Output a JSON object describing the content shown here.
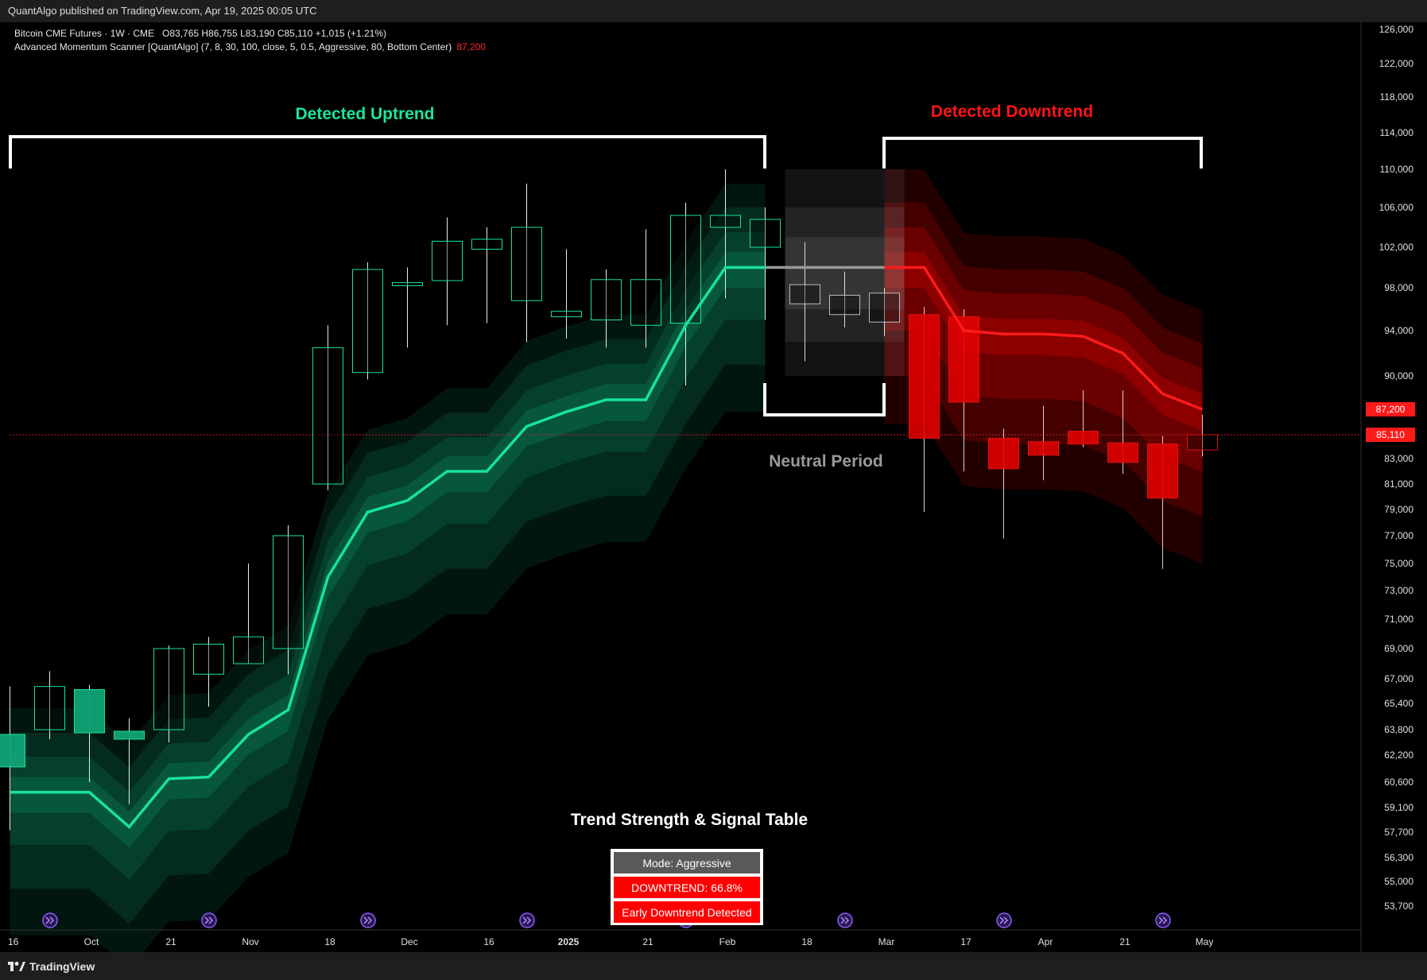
{
  "header": {
    "published": "QuantAlgo published on TradingView.com, Apr 19, 2025 00:05 UTC"
  },
  "legend": {
    "symbol": "Bitcoin CME Futures · 1W · CME",
    "ohlc": "O83,765  H86,755  L83,190  C85,110  +1,015 (+1.21%)",
    "indicator": "Advanced Momentum Scanner [QuantAlgo] (7, 8, 30, 100, close, 5, 0.5, Aggressive, 80, Bottom Center)",
    "indicator_value": "87,200"
  },
  "annotations": {
    "uptrend": "Detected Uptrend",
    "downtrend": "Detected Downtrend",
    "neutral": "Neutral Period",
    "table_title": "Trend Strength & Signal Table"
  },
  "signal_table": {
    "mode": "Mode: Aggressive",
    "trend": "DOWNTREND: 66.8%",
    "signal": "Early Downtrend Detected"
  },
  "footer": {
    "brand": "TradingView"
  },
  "colors": {
    "bull": "#17e39b",
    "bull_body": "#0fa376",
    "bear": "#ff1a1a",
    "neutral": "#808080",
    "price_line": "#ff3b3b"
  },
  "chart_data": {
    "type": "candlestick",
    "timeframe": "1W",
    "y_axis_ticks": [
      126000,
      122000,
      118000,
      114000,
      110000,
      106000,
      102000,
      98000,
      94000,
      90000,
      83000,
      81000,
      79000,
      77000,
      75000,
      73000,
      71000,
      69000,
      67000,
      65400,
      63800,
      62200,
      60600,
      59100,
      57700,
      56300,
      55000,
      53700
    ],
    "x_axis_labels": [
      "16",
      "Oct",
      "21",
      "Nov",
      "18",
      "Dec",
      "16",
      "2025",
      "21",
      "Feb",
      "18",
      "Mar",
      "17",
      "Apr",
      "21",
      "May"
    ],
    "price_labels": [
      {
        "value": 87200,
        "label": "87,200"
      },
      {
        "value": 85110,
        "label": "85,110"
      }
    ],
    "candles": [
      {
        "o": 63500,
        "h": 66500,
        "l": 57800,
        "c": 61500,
        "state": "up"
      },
      {
        "o": 63800,
        "h": 67500,
        "l": 63200,
        "c": 66500,
        "state": "up"
      },
      {
        "o": 66300,
        "h": 66600,
        "l": 60600,
        "c": 63600,
        "state": "up"
      },
      {
        "o": 63700,
        "h": 64500,
        "l": 59300,
        "c": 63200,
        "state": "up"
      },
      {
        "o": 63800,
        "h": 69200,
        "l": 63000,
        "c": 69000,
        "state": "up"
      },
      {
        "o": 67300,
        "h": 69800,
        "l": 65200,
        "c": 69300,
        "state": "up"
      },
      {
        "o": 68000,
        "h": 75000,
        "l": 68000,
        "c": 69800,
        "state": "up"
      },
      {
        "o": 69000,
        "h": 77800,
        "l": 67300,
        "c": 77000,
        "state": "up"
      },
      {
        "o": 81000,
        "h": 94500,
        "l": 80500,
        "c": 92500,
        "state": "up"
      },
      {
        "o": 90300,
        "h": 100500,
        "l": 89700,
        "c": 99800,
        "state": "up"
      },
      {
        "o": 98200,
        "h": 100000,
        "l": 92500,
        "c": 98500,
        "state": "up"
      },
      {
        "o": 98700,
        "h": 105000,
        "l": 94500,
        "c": 102600,
        "state": "up"
      },
      {
        "o": 101800,
        "h": 104000,
        "l": 94700,
        "c": 102800,
        "state": "up"
      },
      {
        "o": 96800,
        "h": 108500,
        "l": 93000,
        "c": 104000,
        "state": "up"
      },
      {
        "o": 95300,
        "h": 101800,
        "l": 93300,
        "c": 95800,
        "state": "up"
      },
      {
        "o": 95000,
        "h": 99800,
        "l": 92500,
        "c": 98800,
        "state": "up"
      },
      {
        "o": 94500,
        "h": 103800,
        "l": 92500,
        "c": 98800,
        "state": "up"
      },
      {
        "o": 94700,
        "h": 106500,
        "l": 89200,
        "c": 105200,
        "state": "up"
      },
      {
        "o": 104000,
        "h": 110000,
        "l": 97000,
        "c": 105200,
        "state": "up"
      },
      {
        "o": 102000,
        "h": 106000,
        "l": 95000,
        "c": 104800,
        "state": "up"
      },
      {
        "o": 96500,
        "h": 102500,
        "l": 91300,
        "c": 98300,
        "state": "neutral"
      },
      {
        "o": 95500,
        "h": 99600,
        "l": 94300,
        "c": 97300,
        "state": "neutral"
      },
      {
        "o": 94800,
        "h": 98000,
        "l": 93500,
        "c": 97500,
        "state": "neutral"
      },
      {
        "o": 95500,
        "h": 96200,
        "l": 78800,
        "c": 84800,
        "state": "down"
      },
      {
        "o": 95300,
        "h": 96000,
        "l": 82000,
        "c": 87800,
        "state": "down"
      },
      {
        "o": 84800,
        "h": 85600,
        "l": 76800,
        "c": 82200,
        "state": "down"
      },
      {
        "o": 84500,
        "h": 87500,
        "l": 81300,
        "c": 83300,
        "state": "down"
      },
      {
        "o": 85400,
        "h": 88800,
        "l": 84000,
        "c": 84300,
        "state": "down"
      },
      {
        "o": 84400,
        "h": 88800,
        "l": 81800,
        "c": 82700,
        "state": "down"
      },
      {
        "o": 84300,
        "h": 85000,
        "l": 74600,
        "c": 79900,
        "state": "down"
      },
      {
        "o": 83765,
        "h": 86755,
        "l": 83190,
        "c": 85110,
        "state": "down"
      }
    ],
    "trend_line": [
      60000,
      60000,
      60000,
      58000,
      60800,
      60900,
      63500,
      65000,
      74000,
      78800,
      79700,
      82000,
      82000,
      85800,
      87000,
      88000,
      88000,
      94500,
      100000,
      100000,
      100000,
      100000,
      100000,
      100000,
      94000,
      93700,
      93700,
      93500,
      92000,
      88500,
      87200
    ]
  }
}
